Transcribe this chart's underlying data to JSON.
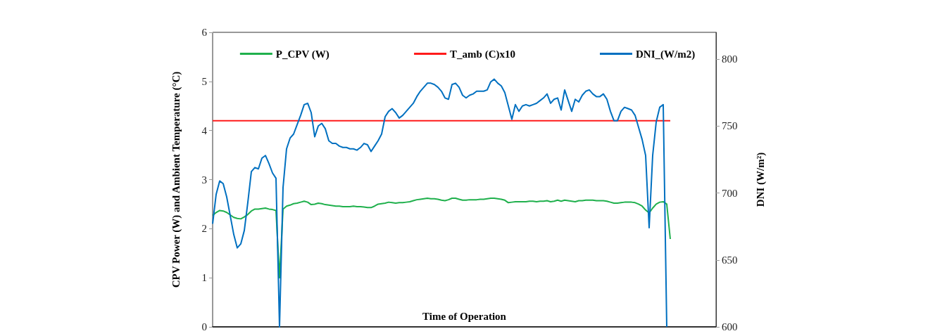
{
  "chart_data": {
    "type": "line",
    "xlabel": "Time of Operation",
    "ylabel": "CPV Power (W) and Ambient Temperature (°C)",
    "y2label": "DNI (W/m²)",
    "categories": [
      null,
      null,
      null,
      null,
      null,
      null,
      null,
      null,
      null,
      null,
      null,
      null,
      null,
      null,
      null,
      null,
      null,
      null,
      null,
      null,
      null,
      null,
      null,
      null,
      null,
      null,
      null,
      null,
      null,
      null,
      null,
      null,
      null,
      null,
      null,
      null,
      null,
      null,
      null,
      null,
      null,
      null,
      null,
      null,
      null,
      null,
      null,
      null,
      null,
      null,
      null,
      null,
      null,
      null,
      null,
      null,
      null,
      null,
      null,
      null,
      null,
      null,
      null,
      null,
      null,
      null,
      null,
      null,
      null,
      null,
      null,
      null,
      null,
      null,
      null,
      null,
      null,
      null,
      null,
      null,
      null,
      null,
      null,
      null,
      null,
      null,
      null,
      null,
      null,
      null,
      null,
      null,
      null,
      null,
      null,
      null,
      null,
      null,
      null,
      null,
      null,
      null,
      null,
      null,
      null,
      null,
      null,
      null,
      null,
      null,
      null,
      null,
      null,
      null,
      null,
      null,
      null,
      null,
      null,
      null,
      null,
      null,
      null,
      null,
      null,
      null,
      null,
      null,
      null,
      null,
      null,
      null,
      null,
      null,
      null,
      null,
      null,
      null,
      null,
      null,
      null,
      null,
      null,
      null
    ],
    "series": [
      {
        "name": "P_CPV (W)",
        "color": "#1fb04c",
        "values": [
          2.27,
          2.33,
          2.37,
          2.36,
          2.33,
          2.28,
          2.23,
          2.21,
          2.2,
          2.24,
          2.29,
          2.36,
          2.4,
          2.4,
          2.41,
          2.42,
          2.4,
          2.39,
          2.37,
          1.0,
          2.4,
          2.46,
          2.48,
          2.51,
          2.52,
          2.54,
          2.56,
          2.54,
          2.49,
          2.5,
          2.52,
          2.51,
          2.49,
          2.48,
          2.47,
          2.46,
          2.46,
          2.45,
          2.45,
          2.45,
          2.46,
          2.45,
          2.45,
          2.44,
          2.43,
          2.43,
          2.46,
          2.5,
          2.51,
          2.52,
          2.54,
          2.53,
          2.52,
          2.53,
          2.53,
          2.54,
          2.55,
          2.57,
          2.59,
          2.6,
          2.61,
          2.62,
          2.61,
          2.61,
          2.6,
          2.58,
          2.57,
          2.59,
          2.62,
          2.62,
          2.6,
          2.58,
          2.58,
          2.59,
          2.59,
          2.59,
          2.6,
          2.6,
          2.61,
          2.62,
          2.62,
          2.61,
          2.6,
          2.58,
          2.53,
          2.54,
          2.55,
          2.55,
          2.55,
          2.55,
          2.56,
          2.56,
          2.55,
          2.56,
          2.56,
          2.57,
          2.55,
          2.56,
          2.58,
          2.56,
          2.58,
          2.57,
          2.56,
          2.55,
          2.57,
          2.57,
          2.58,
          2.58,
          2.58,
          2.57,
          2.57,
          2.57,
          2.56,
          2.54,
          2.52,
          2.52,
          2.53,
          2.54,
          2.54,
          2.54,
          2.53,
          2.5,
          2.46,
          2.38,
          2.32,
          2.42,
          2.5,
          2.54,
          2.55,
          2.5,
          1.79,
          null,
          null,
          null,
          null,
          null,
          null,
          null,
          null,
          null,
          null,
          null,
          null,
          null
        ]
      },
      {
        "name": "T_amb (C)x10",
        "color": "#ff1a1a",
        "values": [
          4.2,
          4.2,
          4.2,
          4.2,
          4.2,
          4.2,
          4.2,
          4.2,
          4.2,
          4.2,
          4.2,
          4.2,
          4.2,
          4.2,
          4.2,
          4.2,
          4.2,
          4.2,
          4.2,
          4.2,
          4.2,
          4.2,
          4.2,
          4.2,
          4.2,
          4.2,
          4.2,
          4.2,
          4.2,
          4.2,
          4.2,
          4.2,
          4.2,
          4.2,
          4.2,
          4.2,
          4.2,
          4.2,
          4.2,
          4.2,
          4.2,
          4.2,
          4.2,
          4.2,
          4.2,
          4.2,
          4.2,
          4.2,
          4.2,
          4.2,
          4.2,
          4.2,
          4.2,
          4.2,
          4.2,
          4.2,
          4.2,
          4.2,
          4.2,
          4.2,
          4.2,
          4.2,
          4.2,
          4.2,
          4.2,
          4.2,
          4.2,
          4.2,
          4.2,
          4.2,
          4.2,
          4.2,
          4.2,
          4.2,
          4.2,
          4.2,
          4.2,
          4.2,
          4.2,
          4.2,
          4.2,
          4.2,
          4.2,
          4.2,
          4.2,
          4.2,
          4.2,
          4.2,
          4.2,
          4.2,
          4.2,
          4.2,
          4.2,
          4.2,
          4.2,
          4.2,
          4.2,
          4.2,
          4.2,
          4.2,
          4.2,
          4.2,
          4.2,
          4.2,
          4.2,
          4.2,
          4.2,
          4.2,
          4.2,
          4.2,
          4.2,
          4.2,
          4.2,
          4.2,
          4.2,
          4.2,
          4.2,
          4.2,
          4.2,
          4.2,
          4.2,
          4.2,
          4.2,
          4.2,
          4.2,
          4.2,
          4.2,
          4.2,
          4.2,
          4.2,
          4.2,
          null,
          null,
          null,
          null,
          null,
          null,
          null,
          null,
          null,
          null,
          null,
          null,
          null
        ]
      },
      {
        "name": "DNI_(W/m2)",
        "color": "#0070c0",
        "axis": "y2",
        "values": [
          677,
          699,
          709,
          707,
          697,
          683,
          669,
          659,
          662,
          672,
          693,
          716,
          719,
          718,
          726,
          728,
          722,
          715,
          711,
          600,
          704,
          733,
          741,
          744,
          751,
          758,
          766,
          767,
          760,
          742,
          750,
          752,
          748,
          739,
          737,
          737,
          735,
          734,
          734,
          733,
          733,
          732,
          734,
          737,
          736,
          731,
          735,
          739,
          744,
          757,
          761,
          763,
          760,
          756,
          758,
          761,
          764,
          767,
          772,
          776,
          779,
          782,
          782,
          781,
          779,
          776,
          771,
          770,
          781,
          782,
          779,
          773,
          771,
          773,
          774,
          776,
          776,
          776,
          777,
          783,
          785,
          782,
          780,
          775,
          765,
          755,
          766,
          761,
          765,
          766,
          765,
          766,
          767,
          769,
          771,
          774,
          767,
          770,
          771,
          762,
          777,
          769,
          761,
          770,
          768,
          773,
          776,
          777,
          774,
          772,
          772,
          774,
          770,
          761,
          754,
          754,
          761,
          764,
          763,
          762,
          758,
          749,
          740,
          728,
          674,
          728,
          753,
          764,
          766,
          600,
          null,
          null,
          null,
          null,
          null,
          null,
          null,
          null,
          null,
          null,
          null,
          null,
          null,
          null
        ]
      }
    ],
    "ylim": [
      0,
      6
    ],
    "yticks": [
      0,
      1,
      2,
      3,
      4,
      5,
      6
    ],
    "y2lim": [
      600,
      820
    ],
    "y2ticks": [
      600,
      650,
      700,
      750,
      800
    ],
    "legend": "top",
    "marker": "none",
    "line_style": "solid"
  }
}
